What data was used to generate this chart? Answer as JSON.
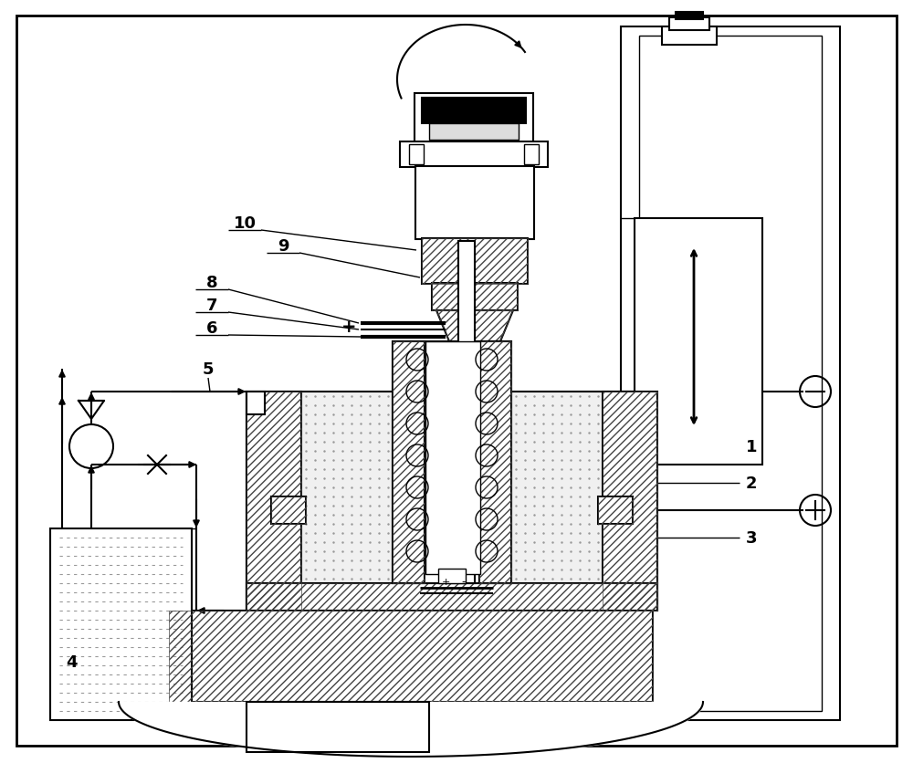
{
  "bg_color": "#ffffff",
  "line_color": "#000000",
  "fig_width": 10.0,
  "fig_height": 8.37,
  "label_fontsize": 13
}
